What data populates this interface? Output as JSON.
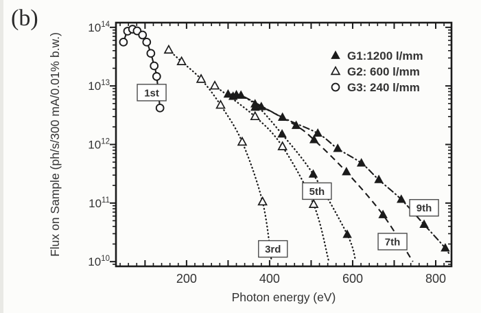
{
  "panel_label": "(b)",
  "colors": {
    "ink": "#1b1b1b",
    "text": "#333333",
    "paper": "#fcfcfa",
    "box_border": "#4a4a4a"
  },
  "chart_data": {
    "type": "line",
    "title": "",
    "xlabel": "Photon energy (eV)",
    "ylabel": "Flux on Sample (ph/s/300 mA/0.01% b.w.)",
    "x_axis": {
      "scale": "linear",
      "xlim": [
        30,
        838
      ],
      "major_ticks": [
        100,
        200,
        300,
        400,
        500,
        600,
        700,
        800
      ],
      "labeled_ticks": [
        200,
        400,
        600,
        800
      ],
      "minor_step": 20
    },
    "y_axis": {
      "scale": "log",
      "ylim_log10": [
        9.92,
        14.08
      ],
      "decade_labels": [
        10,
        11,
        12,
        13,
        14
      ]
    },
    "grid": false,
    "legend": {
      "position": "top-right",
      "items": [
        {
          "marker": "triangle-filled",
          "label": "G1:1200 l/mm"
        },
        {
          "marker": "triangle-open",
          "label": "G2: 600 l/mm"
        },
        {
          "marker": "circle-open",
          "label": "G3: 240 l/mm"
        }
      ]
    },
    "series": [
      {
        "name": "1st-harmonic-G3",
        "order": "1st",
        "grating": "G3",
        "marker": "circle-open",
        "line": "solid",
        "points": [
          [
            48,
            56000000000000.0
          ],
          [
            58,
            86000000000000.0
          ],
          [
            70,
            93000000000000.0
          ],
          [
            81,
            87000000000000.0
          ],
          [
            94,
            74000000000000.0
          ],
          [
            104,
            56000000000000.0
          ],
          [
            114,
            36000000000000.0
          ],
          [
            122,
            22000000000000.0
          ],
          [
            128,
            14500000000000.0
          ],
          [
            136,
            4200000000000.0
          ]
        ]
      },
      {
        "name": "3rd-harmonic-G2",
        "order": "3rd",
        "grating": "G2",
        "marker": "triangle-open",
        "line": "dotted",
        "points": [
          [
            157,
            41000000000000.0
          ],
          [
            188,
            26000000000000.0
          ],
          [
            235,
            13000000000000.0
          ],
          [
            282,
            4700000000000.0
          ],
          [
            334,
            1100000000000.0
          ],
          [
            383,
            105000000000.0
          ]
        ],
        "tail": [
          [
            404,
            11000000000.0
          ]
        ]
      },
      {
        "name": "5th-harmonic-G2",
        "order": "5th",
        "grating": "G2",
        "marker": "triangle-open",
        "line": "dotted",
        "points": [
          [
            268,
            10000000000000.0
          ],
          [
            365,
            3000000000000.0
          ],
          [
            431,
            920000000000.0
          ],
          [
            506,
            95000000000.0
          ]
        ],
        "tail": [
          [
            542,
            10500000000.0
          ]
        ]
      },
      {
        "name": "5th-harmonic-G1",
        "order": "5th",
        "grating": "G1",
        "marker": "triangle-filled",
        "line": "dotted",
        "points": [
          [
            300,
            7200000000000.0
          ],
          [
            320,
            7000000000000.0
          ],
          [
            365,
            4900000000000.0
          ],
          [
            430,
            1500000000000.0
          ],
          [
            505,
            310000000000.0
          ],
          [
            587,
            29000000000.0
          ]
        ],
        "tail": [
          [
            607,
            10500000000.0
          ]
        ]
      },
      {
        "name": "7th-harmonic-G1",
        "order": "7th",
        "grating": "G1",
        "marker": "triangle-filled",
        "line": "long-dash",
        "points": [
          [
            365,
            4300000000000.0
          ],
          [
            380,
            4400000000000.0
          ],
          [
            464,
            2100000000000.0
          ],
          [
            507,
            1200000000000.0
          ],
          [
            585,
            340000000000.0
          ],
          [
            673,
            63000000000.0
          ]
        ],
        "tail": [
          [
            745,
            10000000000.0
          ]
        ]
      },
      {
        "name": "9th-harmonic-G1",
        "order": "9th",
        "grating": "G1",
        "marker": "triangle-filled",
        "line": "dash-dot",
        "points": [
          [
            312,
            6600000000000.0
          ],
          [
            331,
            6900000000000.0
          ],
          [
            431,
            2900000000000.0
          ],
          [
            516,
            1550000000000.0
          ],
          [
            564,
            850000000000.0
          ],
          [
            621,
            480000000000.0
          ],
          [
            663,
            250000000000.0
          ],
          [
            717,
            115000000000.0
          ],
          [
            772,
            43000000000.0
          ],
          [
            823,
            17000000000.0
          ]
        ],
        "tail": [
          [
            834,
            12500000000.0
          ]
        ]
      }
    ],
    "order_labels": [
      {
        "text": "1st",
        "E": 116,
        "F": 7700000000000.0
      },
      {
        "text": "3rd",
        "E": 408,
        "F": 16500000000.0
      },
      {
        "text": "5th",
        "E": 514,
        "F": 160000000000.0
      },
      {
        "text": "7th",
        "E": 696,
        "F": 22000000000.0
      },
      {
        "text": "9th",
        "E": 772,
        "F": 83000000000.0
      }
    ]
  }
}
